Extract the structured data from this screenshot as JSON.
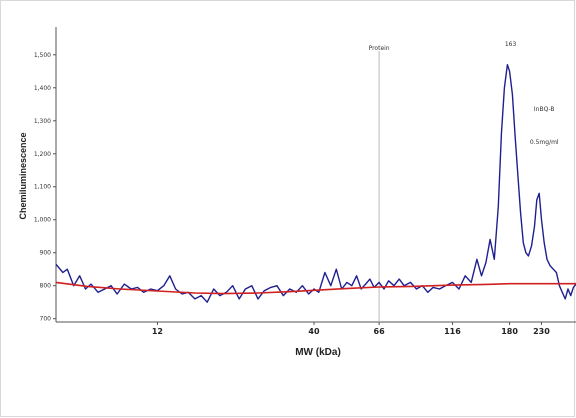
{
  "chart_data": {
    "type": "line",
    "xlabel": "MW (kDa)",
    "ylabel": "Chemiluminescence",
    "x_scale": "log",
    "xlim": [
      5.5,
      300
    ],
    "ylim": [
      690,
      1560
    ],
    "y_ticks": [
      {
        "value": 700,
        "label": "700"
      },
      {
        "value": 800,
        "label": "800"
      },
      {
        "value": 900,
        "label": "900"
      },
      {
        "value": 1000,
        "label": "1,000"
      },
      {
        "value": 1100,
        "label": "1,100"
      },
      {
        "value": 1200,
        "label": "1,200"
      },
      {
        "value": 1300,
        "label": "1,300"
      },
      {
        "value": 1400,
        "label": "1,400"
      },
      {
        "value": 1500,
        "label": "1,500"
      }
    ],
    "x_ticks": [
      {
        "value": 12,
        "label": "12"
      },
      {
        "value": 40,
        "label": "40"
      },
      {
        "value": 66,
        "label": "66"
      },
      {
        "value": 116,
        "label": "116"
      },
      {
        "value": 180,
        "label": "180"
      },
      {
        "value": 230,
        "label": "230"
      }
    ],
    "annotations": [
      {
        "text": "Protein",
        "x": 66
      },
      {
        "text": "163",
        "x": 180
      },
      {
        "text": "InBQ-B",
        "x": 235
      },
      {
        "text": "0.5mg/ml",
        "x": 235
      }
    ],
    "grid": false,
    "series": [
      {
        "color": "#1f1f8f",
        "points": [
          [
            5.5,
            865
          ],
          [
            5.8,
            840
          ],
          [
            6.0,
            850
          ],
          [
            6.3,
            800
          ],
          [
            6.6,
            830
          ],
          [
            6.9,
            790
          ],
          [
            7.2,
            805
          ],
          [
            7.6,
            780
          ],
          [
            8.0,
            790
          ],
          [
            8.4,
            800
          ],
          [
            8.8,
            775
          ],
          [
            9.3,
            805
          ],
          [
            9.8,
            790
          ],
          [
            10.3,
            795
          ],
          [
            10.8,
            780
          ],
          [
            11.4,
            790
          ],
          [
            12.0,
            785
          ],
          [
            12.6,
            800
          ],
          [
            13.2,
            830
          ],
          [
            13.8,
            790
          ],
          [
            14.5,
            775
          ],
          [
            15.2,
            780
          ],
          [
            16.0,
            760
          ],
          [
            16.8,
            770
          ],
          [
            17.6,
            750
          ],
          [
            18.5,
            790
          ],
          [
            19.4,
            770
          ],
          [
            20.4,
            780
          ],
          [
            21.4,
            800
          ],
          [
            22.5,
            760
          ],
          [
            23.6,
            790
          ],
          [
            24.8,
            800
          ],
          [
            26.0,
            760
          ],
          [
            27.3,
            785
          ],
          [
            28.7,
            795
          ],
          [
            30.1,
            800
          ],
          [
            31.6,
            770
          ],
          [
            33.2,
            790
          ],
          [
            34.9,
            780
          ],
          [
            36.6,
            800
          ],
          [
            38.4,
            775
          ],
          [
            40.0,
            790
          ],
          [
            41.5,
            780
          ],
          [
            43.5,
            840
          ],
          [
            45.5,
            800
          ],
          [
            47.5,
            850
          ],
          [
            49.5,
            790
          ],
          [
            51.5,
            810
          ],
          [
            53.5,
            800
          ],
          [
            55.5,
            830
          ],
          [
            57.5,
            790
          ],
          [
            59.5,
            805
          ],
          [
            61.5,
            820
          ],
          [
            63.5,
            795
          ],
          [
            66.0,
            810
          ],
          [
            68.5,
            790
          ],
          [
            71.0,
            815
          ],
          [
            74.0,
            800
          ],
          [
            77.0,
            820
          ],
          [
            80.0,
            800
          ],
          [
            84.0,
            810
          ],
          [
            88.0,
            790
          ],
          [
            92.0,
            800
          ],
          [
            96.0,
            780
          ],
          [
            100.0,
            795
          ],
          [
            105.0,
            790
          ],
          [
            110.0,
            800
          ],
          [
            116.0,
            810
          ],
          [
            122.0,
            790
          ],
          [
            128.0,
            830
          ],
          [
            134.0,
            810
          ],
          [
            140.0,
            880
          ],
          [
            145.0,
            830
          ],
          [
            150.0,
            870
          ],
          [
            155.0,
            940
          ],
          [
            160.0,
            880
          ],
          [
            165.0,
            1040
          ],
          [
            169.0,
            1260
          ],
          [
            173.0,
            1400
          ],
          [
            177.0,
            1470
          ],
          [
            180.0,
            1450
          ],
          [
            184.0,
            1380
          ],
          [
            188.0,
            1250
          ],
          [
            192.0,
            1130
          ],
          [
            196.0,
            1020
          ],
          [
            200.0,
            930
          ],
          [
            204.0,
            900
          ],
          [
            208.0,
            890
          ],
          [
            213.0,
            920
          ],
          [
            218.0,
            980
          ],
          [
            222.0,
            1060
          ],
          [
            226.0,
            1080
          ],
          [
            230.0,
            1000
          ],
          [
            235.0,
            930
          ],
          [
            240.0,
            880
          ],
          [
            246.0,
            860
          ],
          [
            252.0,
            850
          ],
          [
            258.0,
            840
          ],
          [
            264.0,
            800
          ],
          [
            270.0,
            780
          ],
          [
            276.0,
            760
          ],
          [
            282.0,
            790
          ],
          [
            288.0,
            770
          ],
          [
            294.0,
            795
          ],
          [
            300.0,
            805
          ]
        ]
      },
      {
        "color": "#d02020",
        "points": [
          [
            5.5,
            810
          ],
          [
            7.0,
            798
          ],
          [
            9.0,
            790
          ],
          [
            12.0,
            784
          ],
          [
            16.0,
            778
          ],
          [
            20.0,
            776
          ],
          [
            26.0,
            778
          ],
          [
            33.0,
            782
          ],
          [
            40.0,
            786
          ],
          [
            52.0,
            792
          ],
          [
            66.0,
            796
          ],
          [
            85.0,
            798
          ],
          [
            116.0,
            802
          ],
          [
            150.0,
            804
          ],
          [
            180.0,
            806
          ],
          [
            230.0,
            806
          ],
          [
            300.0,
            806
          ]
        ]
      }
    ]
  }
}
